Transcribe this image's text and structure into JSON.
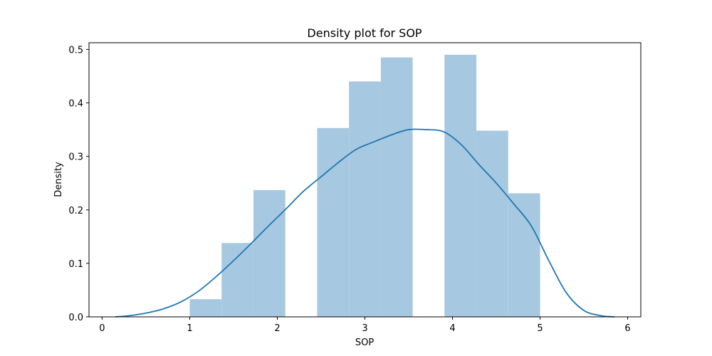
{
  "chart_data": {
    "type": "bar",
    "title": "Density plot for SOP",
    "xlabel": "SOP",
    "ylabel": "Density",
    "xlim": [
      -0.15,
      6.15
    ],
    "ylim": [
      0,
      0.5125
    ],
    "xticks": [
      0,
      1,
      2,
      3,
      4,
      5,
      6
    ],
    "yticks": [
      0.0,
      0.1,
      0.2,
      0.3,
      0.4,
      0.5
    ],
    "xtick_labels": [
      "0",
      "1",
      "2",
      "3",
      "4",
      "5",
      "6"
    ],
    "ytick_labels": [
      "0.0",
      "0.1",
      "0.2",
      "0.3",
      "0.4",
      "0.5"
    ],
    "grid": false,
    "legend": "none",
    "colors": {
      "bars": "#a6c8e0",
      "kde": "#1f77b4"
    },
    "histogram": {
      "bin_edges": [
        1.0,
        1.364,
        1.727,
        2.091,
        2.455,
        2.818,
        3.182,
        3.545,
        3.909,
        4.273,
        4.636,
        5.0
      ],
      "densities": [
        0.033,
        0.138,
        0.237,
        0.0,
        0.353,
        0.44,
        0.485,
        0.0,
        0.49,
        0.348,
        0.231
      ]
    },
    "kde": {
      "x": [
        0.15,
        0.3,
        0.5,
        0.7,
        0.9,
        1.1,
        1.3,
        1.5,
        1.7,
        1.9,
        2.1,
        2.3,
        2.5,
        2.7,
        2.9,
        3.1,
        3.3,
        3.5,
        3.7,
        3.9,
        4.1,
        4.3,
        4.5,
        4.7,
        4.9,
        5.1,
        5.3,
        5.5,
        5.7,
        5.85
      ],
      "y": [
        0.0,
        0.002,
        0.007,
        0.015,
        0.028,
        0.048,
        0.075,
        0.105,
        0.137,
        0.17,
        0.202,
        0.235,
        0.262,
        0.289,
        0.313,
        0.327,
        0.34,
        0.35,
        0.35,
        0.346,
        0.322,
        0.285,
        0.25,
        0.211,
        0.17,
        0.105,
        0.045,
        0.012,
        0.002,
        0.0
      ]
    }
  }
}
